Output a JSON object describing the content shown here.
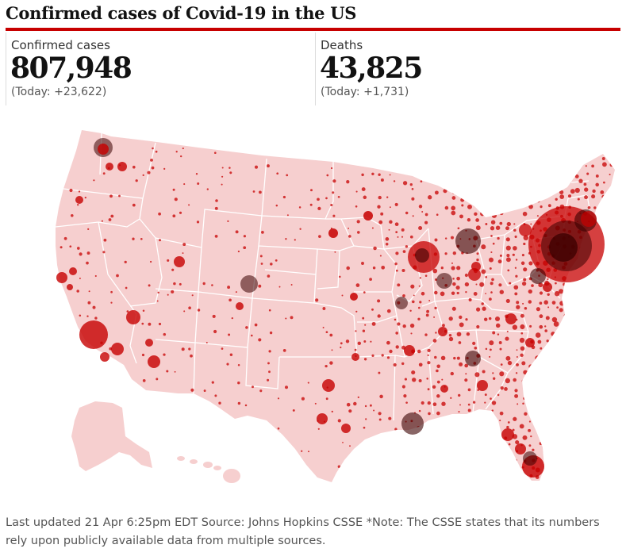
{
  "title": "Confirmed cases of Covid-19 in the US",
  "stats": {
    "cases": {
      "label": "Confirmed cases",
      "value": "807,948",
      "today": "(Today: +23,622)"
    },
    "deaths": {
      "label": "Deaths",
      "value": "43,825",
      "today": "(Today: +1,731)"
    }
  },
  "map": {
    "land_color": "#f6cfcf",
    "border_color": "#ffffff",
    "bubble_color": "#c70000",
    "hotspot_color": "#3a0000"
  },
  "footnote": "Last updated 21 Apr 6:25pm EDT Source: Johns Hopkins CSSE *Note: The CSSE states that its numbers rely upon publicly available data from multiple sources."
}
